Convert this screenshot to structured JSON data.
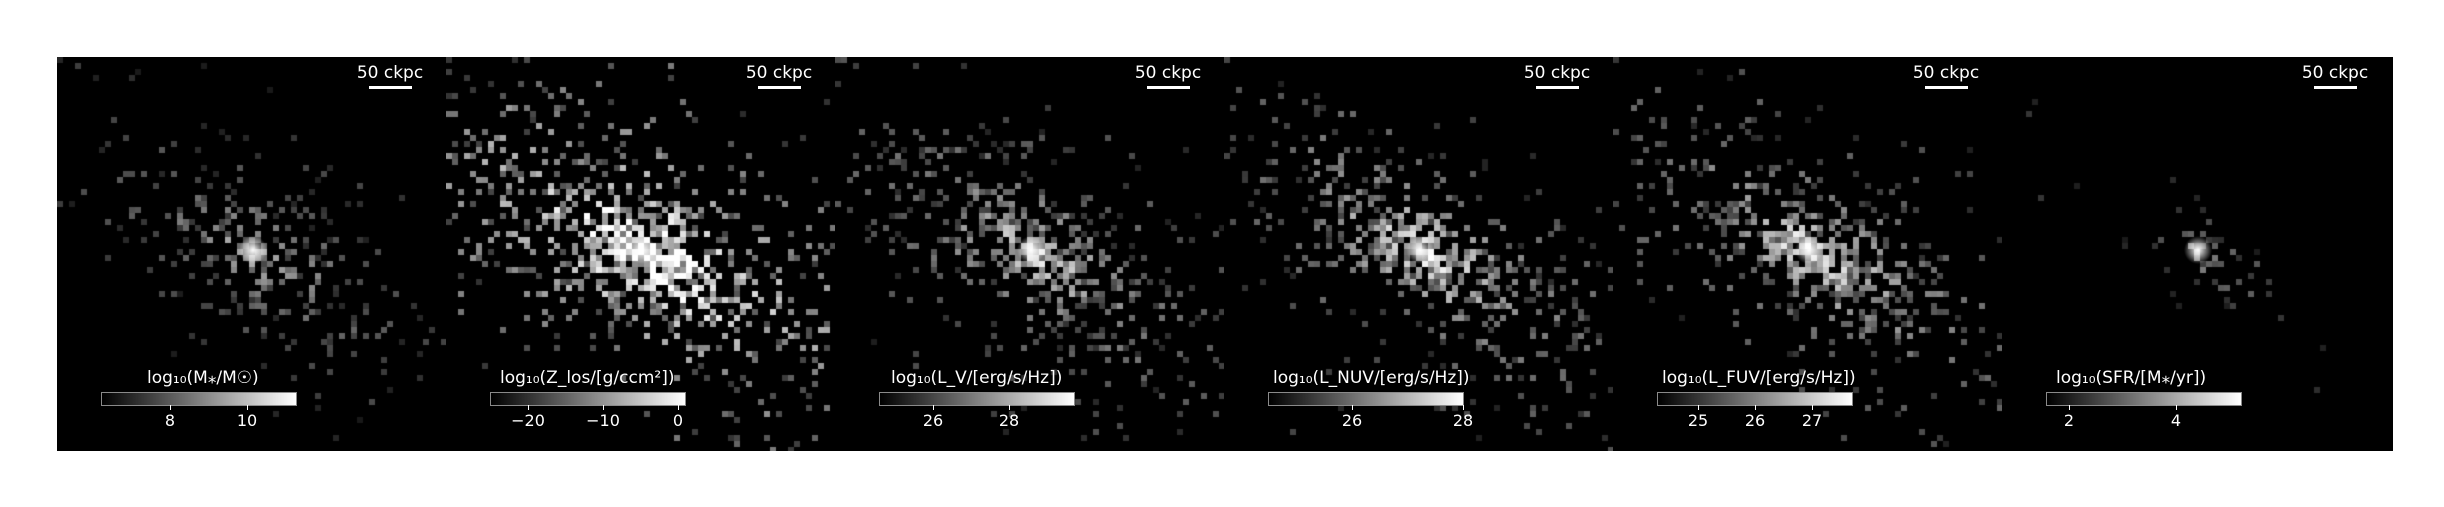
{
  "panels": [
    {
      "scale_label": "50 ckpc",
      "colorbar": {
        "label": "log₁₀(M⁎/M☉)",
        "ticks": [
          "8",
          "10"
        ],
        "tick_values": [
          8,
          10
        ],
        "range": [
          6.2,
          11.3
        ]
      },
      "map_style": {
        "brightness": 0.45,
        "spread": 1.0,
        "density": 0.55
      }
    },
    {
      "scale_label": "50 ckpc",
      "colorbar": {
        "label": "log₁₀(Z_los/[g/ccm²])",
        "ticks": [
          "−20",
          "−10",
          "0"
        ],
        "tick_values": [
          -20,
          -10,
          0
        ],
        "range": [
          -25,
          1
        ]
      },
      "map_style": {
        "brightness": 0.85,
        "spread": 1.3,
        "density": 0.9
      }
    },
    {
      "scale_label": "50 ckpc",
      "colorbar": {
        "label": "log₁₀(L_V/[erg/s/Hz])",
        "ticks": [
          "26",
          "28"
        ],
        "tick_values": [
          26,
          28
        ],
        "range": [
          24.6,
          29.7
        ]
      },
      "map_style": {
        "brightness": 0.55,
        "spread": 1.15,
        "density": 0.7
      }
    },
    {
      "scale_label": "50 ckpc",
      "colorbar": {
        "label": "log₁₀(L_NUV/[erg/s/Hz])",
        "ticks": [
          "26",
          "28"
        ],
        "tick_values": [
          26,
          28
        ],
        "range": [
          24.5,
          28
        ]
      },
      "map_style": {
        "brightness": 0.6,
        "spread": 1.15,
        "density": 0.75
      }
    },
    {
      "scale_label": "50 ckpc",
      "colorbar": {
        "label": "log₁₀(L_FUV/[erg/s/Hz])",
        "ticks": [
          "25",
          "26",
          "27"
        ],
        "tick_values": [
          25,
          26,
          27
        ],
        "range": [
          24.3,
          27.7
        ]
      },
      "map_style": {
        "brightness": 0.6,
        "spread": 1.15,
        "density": 0.75
      }
    },
    {
      "scale_label": "50 ckpc",
      "colorbar": {
        "label": "log₁₀(SFR/[M⁎/yr])",
        "ticks": [
          "2",
          "4"
        ],
        "tick_values": [
          2,
          4
        ],
        "range": [
          1.6,
          5.2
        ]
      },
      "map_style": {
        "brightness": 0.4,
        "spread": 0.55,
        "density": 0.3
      }
    }
  ]
}
